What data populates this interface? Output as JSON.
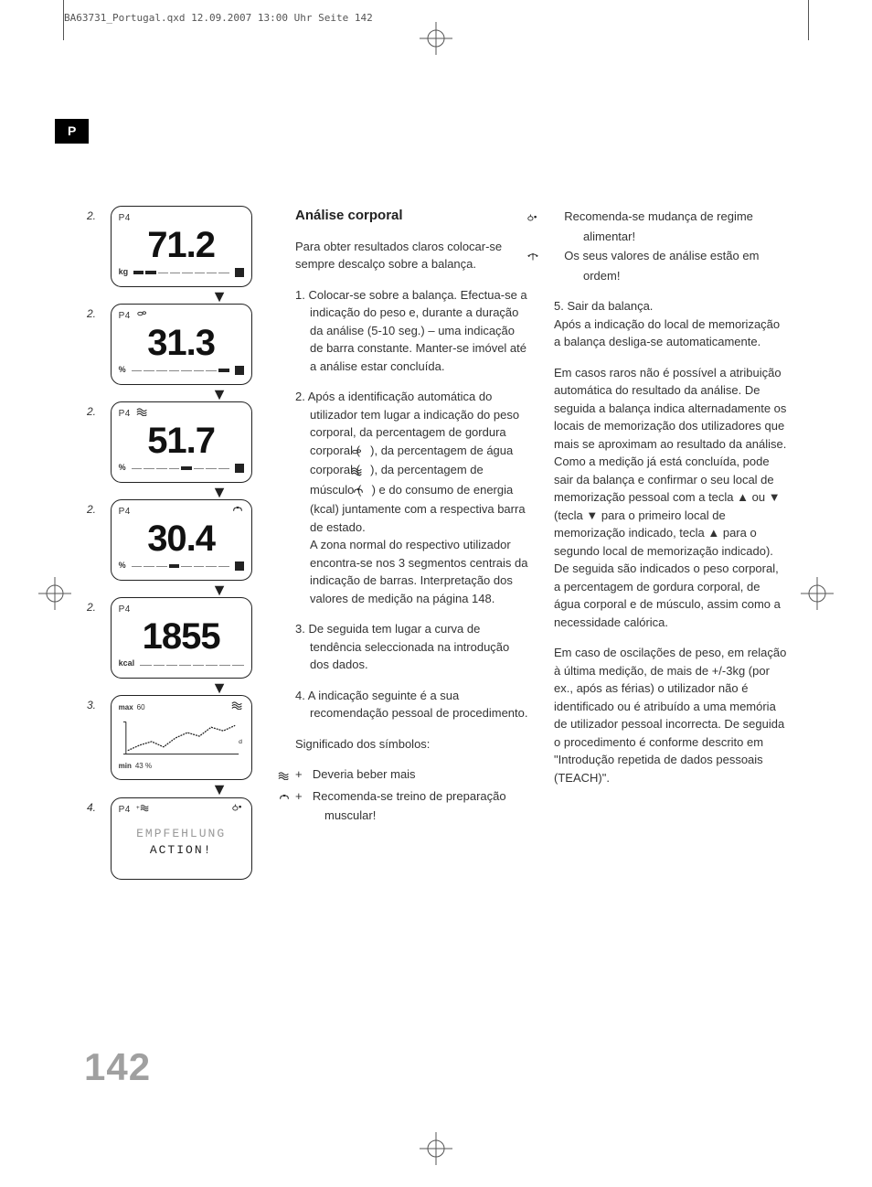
{
  "print_header": "BA63731_Portugal.qxd  12.09.2007  13:00 Uhr  Seite 142",
  "lang_tab": "P",
  "page_number": "142",
  "displays": [
    {
      "step": "2.",
      "profile": "P4",
      "icon": null,
      "icon_right": null,
      "value": "71.2",
      "unit": "kg",
      "bar": [
        1,
        1,
        0,
        0,
        0,
        0,
        0,
        0
      ],
      "marker": true
    },
    {
      "step": "2.",
      "profile": "P4",
      "icon": "fat",
      "icon_right": null,
      "value": "31.3",
      "unit": "%",
      "bar": [
        0,
        0,
        0,
        0,
        0,
        0,
        0,
        1
      ],
      "marker": true
    },
    {
      "step": "2.",
      "profile": "P4",
      "icon": "water",
      "icon_right": null,
      "value": "51.7",
      "unit": "%",
      "bar": [
        0,
        0,
        0,
        0,
        1,
        0,
        0,
        0
      ],
      "marker": true
    },
    {
      "step": "2.",
      "profile": "P4",
      "icon": null,
      "icon_right": "muscle",
      "value": "30.4",
      "unit": "%",
      "bar": [
        0,
        0,
        0,
        1,
        0,
        0,
        0,
        0
      ],
      "marker": true
    },
    {
      "step": "2.",
      "profile": "P4",
      "icon": null,
      "icon_right": null,
      "value": "1855",
      "unit": "kcal",
      "bar": [
        0,
        0,
        0,
        0,
        0,
        0,
        0,
        0
      ],
      "marker": false
    },
    {
      "step": "3.",
      "profile": null,
      "trend": true,
      "max_label": "max",
      "max_val": "60",
      "min_label": "min",
      "min_val": "43 %",
      "right_label": "d",
      "trend_points": [
        45,
        48,
        50,
        47,
        52,
        55,
        53,
        58,
        56,
        59
      ],
      "ylim": [
        43,
        60
      ],
      "icon": "water"
    },
    {
      "step": "4.",
      "profile": "P4",
      "action": true,
      "icon_mid": "water_plus",
      "icon_right": "food",
      "line1": "EMPFEHLUNG",
      "line2": "ACTION!"
    }
  ],
  "col2": {
    "title": "Análise corporal",
    "intro": "Para obter resultados claros colocar-se sempre descalço sobre a balança.",
    "step1": "1. Colocar-se sobre a balança. Efectua-se a indicação do peso e, durante a duração da análise (5-10 seg.) – uma indicação de barra constante. Manter-se imóvel até a análise estar concluída.",
    "step2": "2. Após a identificação automática do utilizador tem lugar a indicação do peso corporal, da percentagem de gordura corporal ( {FAT} ), da percentagem de água corporal ( {WATER} ), da percentagem de músculo ( {MUSCLE} ) e do consumo de energia (kcal) juntamente com a respectiva barra de estado.\nA zona normal do respectivo utilizador encontra-se nos 3 segmentos centrais da indicação de barras. Interpretação dos valores de medição na página 148.",
    "step3": "3. De seguida tem lugar a curva de tendência seleccionada na introdução dos dados.",
    "step4": "4. A indicação seguinte é a sua recomendação pessoal de procedimento.",
    "symbols_title": "Significado dos símbolos:",
    "sym1": "Deveria beber mais",
    "sym2": "Recomenda-se treino de preparação muscular!"
  },
  "col3": {
    "sym3": "Recomenda-se mudança de regime alimentar!",
    "sym4": "Os seus valores de análise estão em ordem!",
    "step5": "5. Sair da balança.\nApós a indicação do local de memorização a balança desliga-se automaticamente.",
    "para1": "Em casos raros não é possível a atribuição automática do resultado da análise. De seguida a balança indica alternadamente os locais de memorização dos utilizadores que mais se aproximam ao resultado da análise.\nComo a medição já está concluída, pode sair da balança e confirmar o seu local de memorização pessoal com a tecla ▲ ou ▼ (tecla ▼ para o primeiro local de memorização indicado, tecla ▲ para o segundo local de memorização indicado). De seguida são indicados o peso corporal, a percentagem de gordura corporal, de água corporal e de músculo, assim como a necessidade calórica.",
    "para2": "Em caso de oscilações de peso, em relação à última medição, de mais de +/-3kg (por ex., após as férias) o utilizador não é identificado ou é atribuído a uma memória de utilizador pessoal incorrecta. De seguida o procedimento é conforme descrito em \"Introdução repetida de dados pessoais (TEACH)\"."
  },
  "icons": {
    "fat": "<svg viewBox='0 0 16 10'><ellipse cx='5' cy='5' rx='3' ry='2' fill='none' stroke='#222' stroke-width='1'/><ellipse cx='10' cy='4' rx='2' ry='1.5' fill='none' stroke='#222' stroke-width='1'/></svg>",
    "water": "<svg viewBox='0 0 16 10'><path d='M1 3 Q4 0 7 3 T13 3 M1 6 Q4 3 7 6 T13 6 M1 9 Q4 6 7 9 T13 9' fill='none' stroke='#222' stroke-width='1.2'/></svg>",
    "water_plus": "<svg viewBox='0 0 20 10'><text x='0' y='8' font-size='9' fill='#222'>+</text><path d='M7 3 Q10 0 13 3 T19 3 M7 6 Q10 3 13 6 T19 6 M7 9 Q10 6 13 9 T19 9' fill='none' stroke='#222' stroke-width='1.2'/></svg>",
    "muscle": "<svg viewBox='0 0 16 10'><path d='M3 7 Q3 3 6 3 Q8 1 10 3 Q13 3 13 7' fill='none' stroke='#222' stroke-width='1.2'/><circle cx='8' cy='3' r='1.2' fill='#222'/></svg>",
    "food": "<svg viewBox='0 0 16 10'><ellipse cx='5' cy='6' rx='3' ry='2.5' fill='none' stroke='#222' stroke-width='1'/><path d='M5 3 L5 1' stroke='#222'/><circle cx='11' cy='4' r='1.5' fill='#222'/></svg>",
    "scale": "<svg viewBox='0 0 16 10'><path d='M8 1 L8 9 M3 3 L8 1 L13 3 M2 3 L4 3 M12 3 L14 3 M2 3 Q3 6 4 3 M12 3 Q13 6 14 3' fill='none' stroke='#222' stroke-width='1'/></svg>"
  },
  "colors": {
    "text": "#333333",
    "border": "#222222",
    "page_num": "#a0a0a0",
    "faded": "#999999",
    "bg": "#ffffff"
  }
}
